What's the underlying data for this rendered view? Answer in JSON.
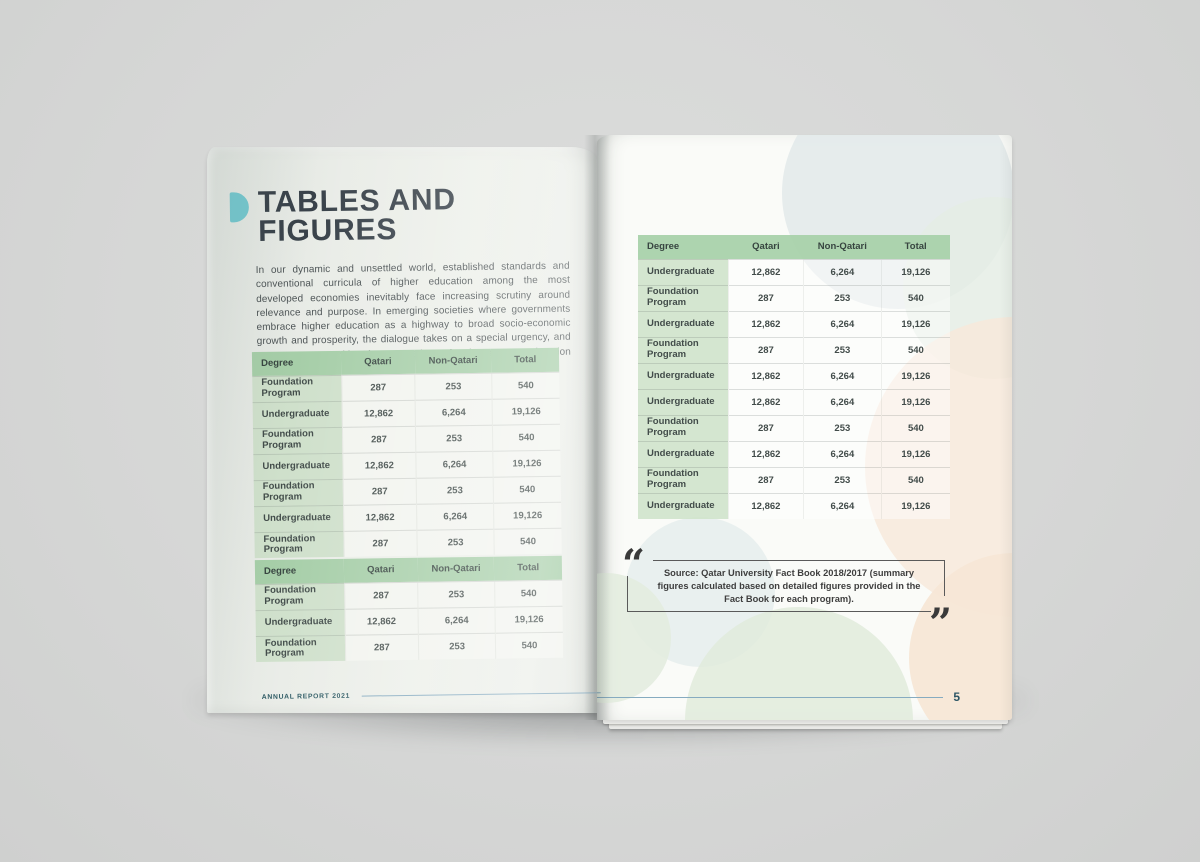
{
  "left_page": {
    "title_line1": "TABLES AND",
    "title_line2": "FIGURES",
    "intro": "In our dynamic and unsettled world, established standards and conventional curricula of higher education among the most developed economies inevitably face increasing scrutiny around relevance and purpose. In emerging societies where governments embrace higher education as a highway to broad socio-economic growth and prosperity, the dialogue takes on a special urgency, and presents opportunities for a creative reframing among education leaders.",
    "tables": [
      {
        "headers": [
          "Degree",
          "Qatari",
          "Non-Qatari",
          "Total"
        ],
        "rows": [
          {
            "degree": "Foundation Program",
            "qatari": "287",
            "non_qatari": "253",
            "total": "540"
          },
          {
            "degree": "Undergraduate",
            "qatari": "12,862",
            "non_qatari": "6,264",
            "total": "19,126"
          },
          {
            "degree": "Foundation Program",
            "qatari": "287",
            "non_qatari": "253",
            "total": "540"
          },
          {
            "degree": "Undergraduate",
            "qatari": "12,862",
            "non_qatari": "6,264",
            "total": "19,126"
          },
          {
            "degree": "Foundation Program",
            "qatari": "287",
            "non_qatari": "253",
            "total": "540"
          },
          {
            "degree": "Undergraduate",
            "qatari": "12,862",
            "non_qatari": "6,264",
            "total": "19,126"
          },
          {
            "degree": "Foundation Program",
            "qatari": "287",
            "non_qatari": "253",
            "total": "540"
          }
        ]
      },
      {
        "headers": [
          "Degree",
          "Qatari",
          "Non-Qatari",
          "Total"
        ],
        "rows": [
          {
            "degree": "Foundation Program",
            "qatari": "287",
            "non_qatari": "253",
            "total": "540"
          },
          {
            "degree": "Undergraduate",
            "qatari": "12,862",
            "non_qatari": "6,264",
            "total": "19,126"
          },
          {
            "degree": "Foundation Program",
            "qatari": "287",
            "non_qatari": "253",
            "total": "540"
          }
        ]
      }
    ],
    "footer": "ANNUAL REPORT 2021"
  },
  "right_page": {
    "table": {
      "headers": [
        "Degree",
        "Qatari",
        "Non-Qatari",
        "Total"
      ],
      "rows": [
        {
          "degree": "Undergraduate",
          "qatari": "12,862",
          "non_qatari": "6,264",
          "total": "19,126"
        },
        {
          "degree": "Foundation Program",
          "qatari": "287",
          "non_qatari": "253",
          "total": "540"
        },
        {
          "degree": "Undergraduate",
          "qatari": "12,862",
          "non_qatari": "6,264",
          "total": "19,126"
        },
        {
          "degree": "Foundation Program",
          "qatari": "287",
          "non_qatari": "253",
          "total": "540"
        },
        {
          "degree": "Undergraduate",
          "qatari": "12,862",
          "non_qatari": "6,264",
          "total": "19,126"
        },
        {
          "degree": "Undergraduate",
          "qatari": "12,862",
          "non_qatari": "6,264",
          "total": "19,126"
        },
        {
          "degree": "Foundation Program",
          "qatari": "287",
          "non_qatari": "253",
          "total": "540"
        },
        {
          "degree": "Undergraduate",
          "qatari": "12,862",
          "non_qatari": "6,264",
          "total": "19,126"
        },
        {
          "degree": "Foundation Program",
          "qatari": "287",
          "non_qatari": "253",
          "total": "540"
        },
        {
          "degree": "Undergraduate",
          "qatari": "12,862",
          "non_qatari": "6,264",
          "total": "19,126"
        }
      ]
    },
    "source_note": {
      "label": "Source:",
      "text": "Qatar University Fact Book 2018/2017 (summary figures calculated based on detailed figures provided in the Fact Book for each program)."
    },
    "page_number": "5"
  },
  "icons": {
    "title_marker": "teal-half-circle",
    "open_quote": "“",
    "close_quote": "”"
  },
  "colors": {
    "accent_teal": "#74c7ce",
    "table_header_green": "#a9d2ab",
    "table_first_col_green": "#d0e1cc",
    "footer_text_teal": "#2d5a63",
    "footer_rule_blue": "#86abc0",
    "title_charcoal": "#39424a",
    "quote_text_gray": "#3e3e3e",
    "pastel_peach": "#f7e8da",
    "pastel_green": "#e0ebdc",
    "pastel_blue": "#e2e9ea",
    "backdrop_gray": "#d6d7d6"
  }
}
